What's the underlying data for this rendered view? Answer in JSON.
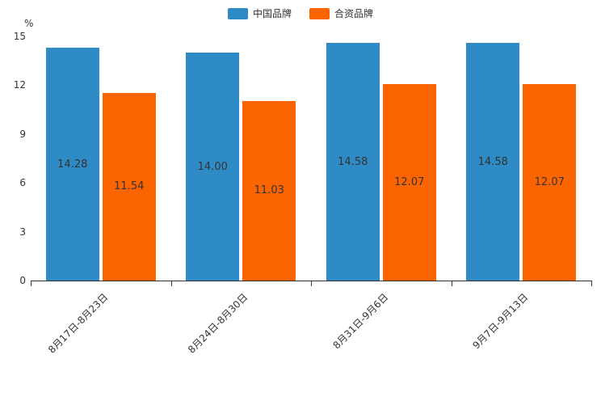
{
  "chart_data": {
    "type": "bar",
    "title": "",
    "ylabel": "%",
    "ylim": [
      0,
      15
    ],
    "yticks": [
      0,
      3,
      6,
      9,
      12,
      15
    ],
    "grid": false,
    "legend_position": "top",
    "categories": [
      "8月17日-8月23日",
      "8月24日-8月30日",
      "8月31日-9月6日",
      "9月7日-9月13日"
    ],
    "series": [
      {
        "name": "中国品牌",
        "color": "#2E8BC6",
        "values": [
          14.28,
          14.0,
          14.58,
          14.58
        ]
      },
      {
        "name": "合资品牌",
        "color": "#FC6400",
        "values": [
          11.54,
          11.03,
          12.07,
          12.07
        ]
      }
    ],
    "value_label_decimals": 2
  }
}
